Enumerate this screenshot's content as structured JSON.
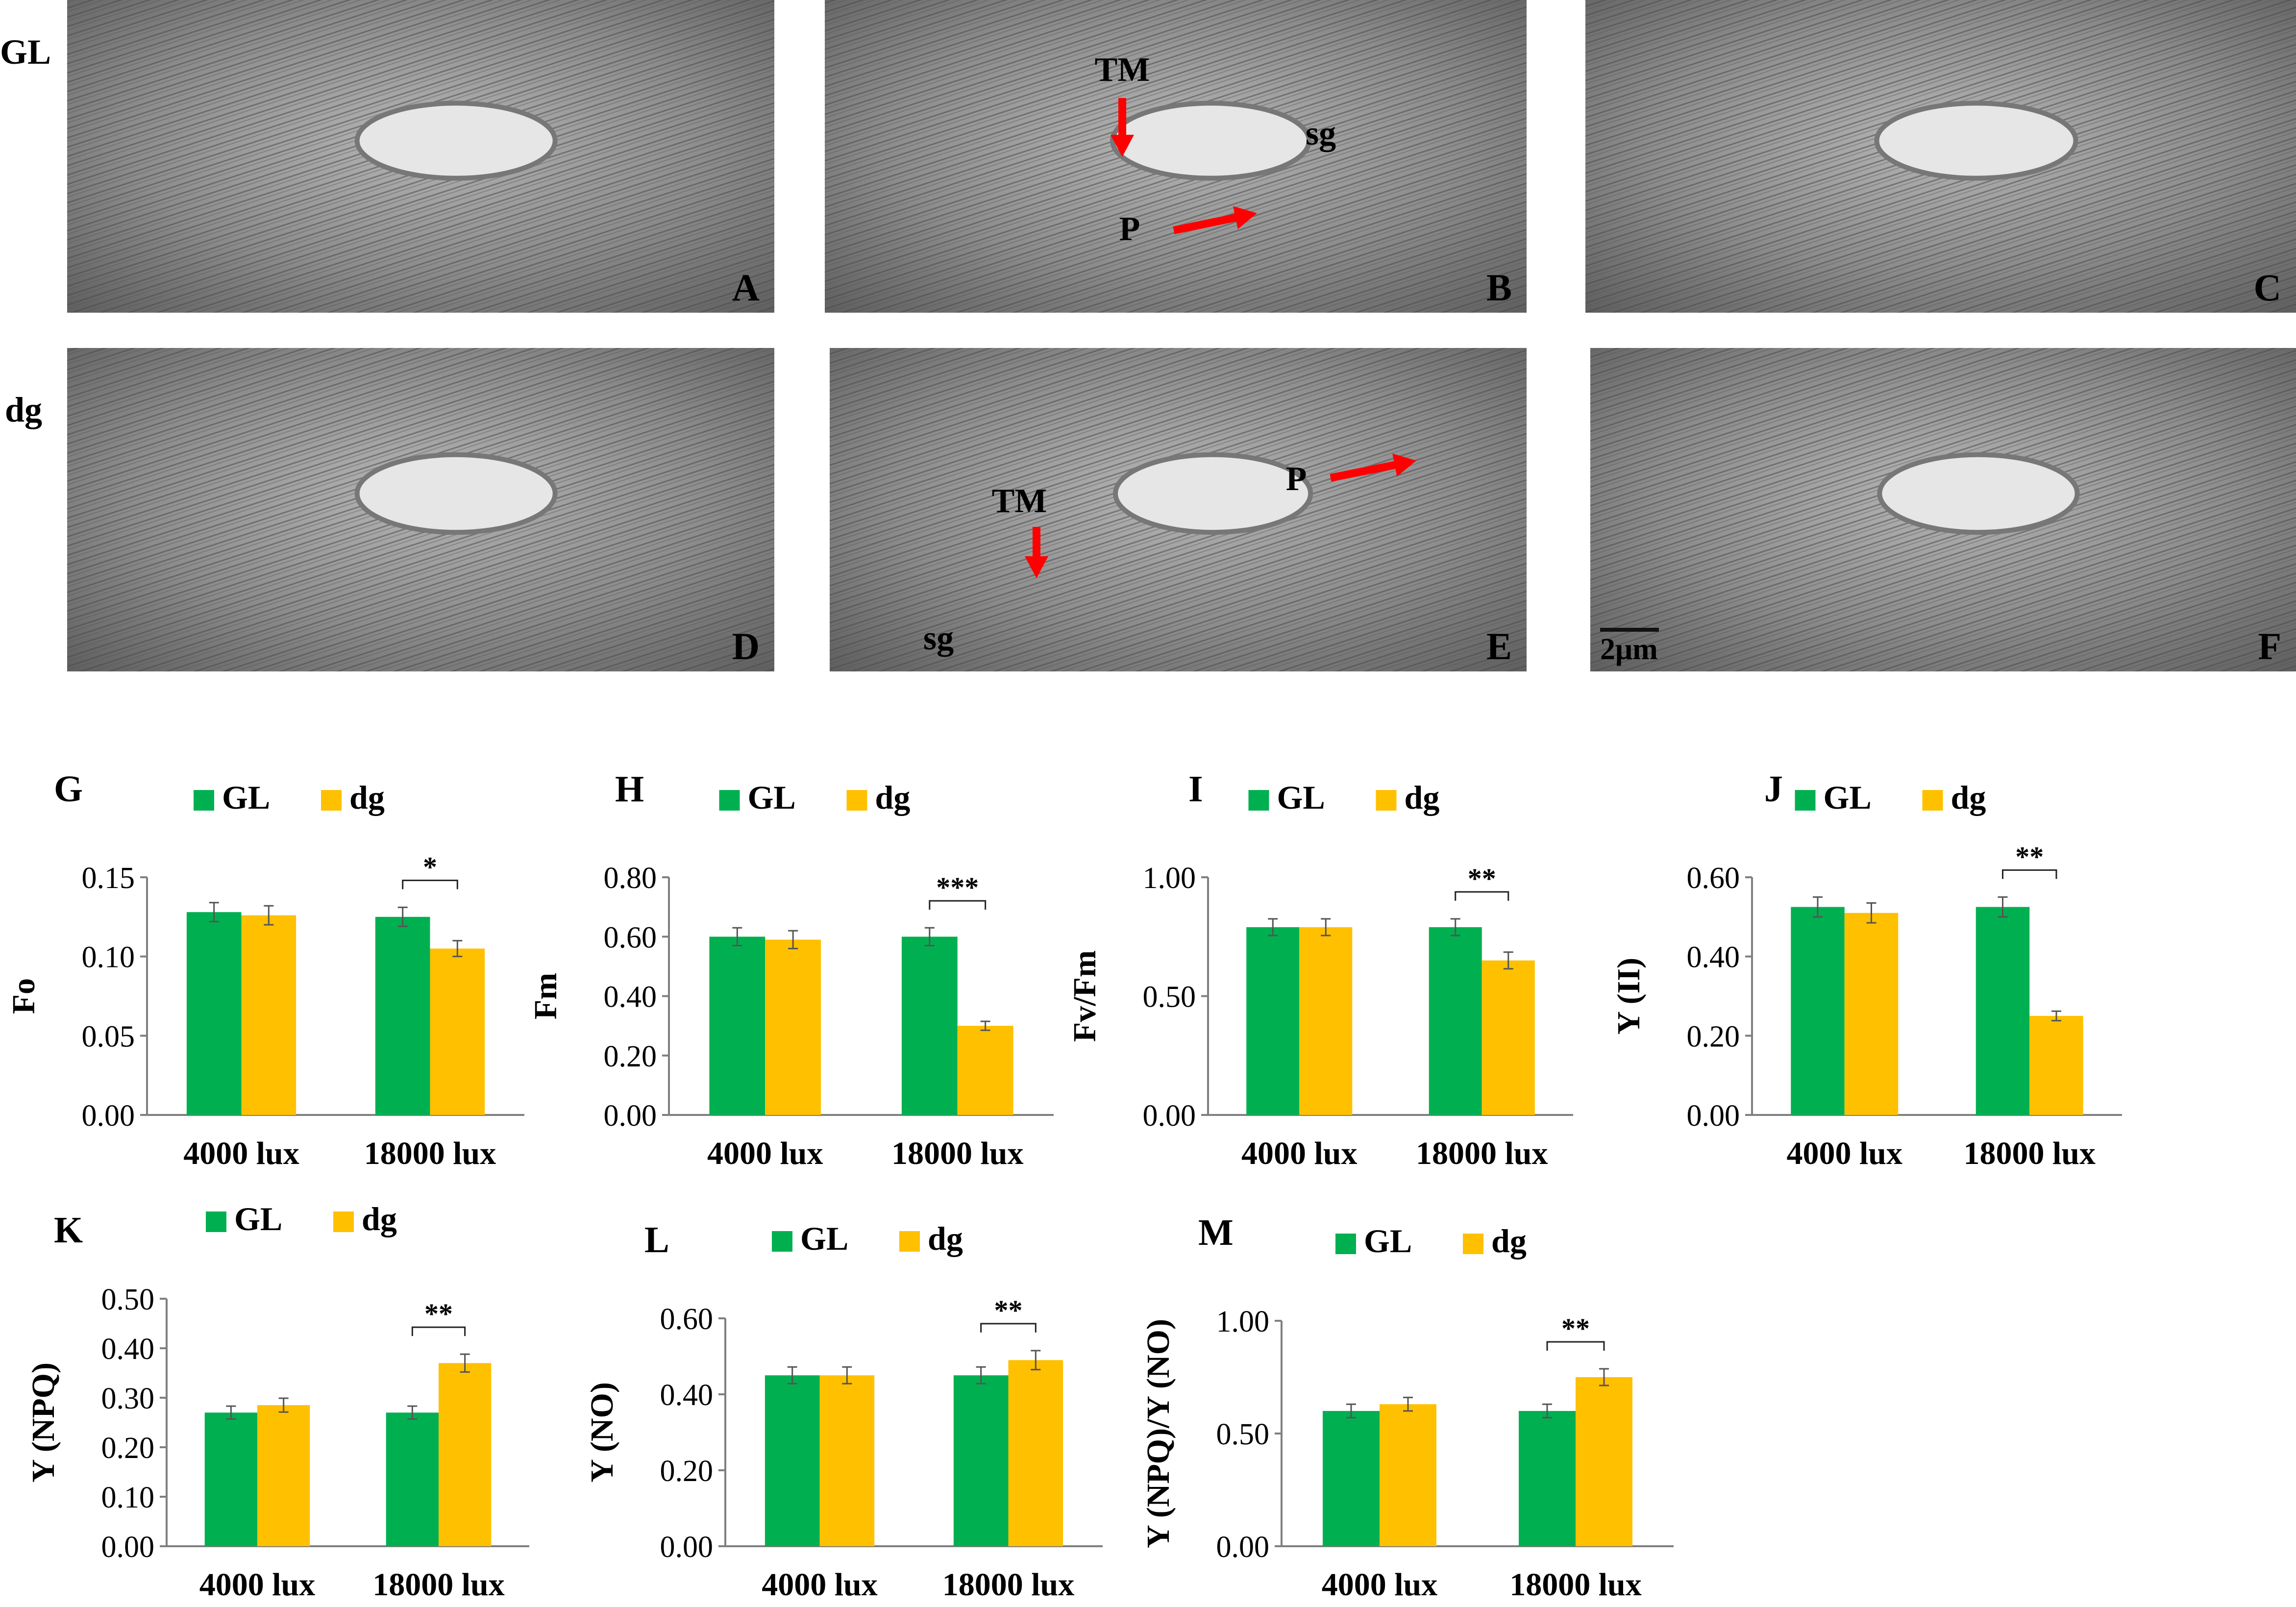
{
  "row_labels": [
    "GL",
    "dg"
  ],
  "micrographs": [
    {
      "letter": "A",
      "labels": []
    },
    {
      "letter": "B",
      "labels": [
        "TM",
        "sg",
        "P"
      ]
    },
    {
      "letter": "C",
      "labels": []
    },
    {
      "letter": "D",
      "labels": []
    },
    {
      "letter": "E",
      "labels": [
        "TM",
        "P",
        "sg"
      ]
    },
    {
      "letter": "F",
      "labels": [],
      "scale_bar": "2μm"
    }
  ],
  "colors": {
    "GL": "#00B050",
    "dg": "#FFC000",
    "arrow": "#ff0000"
  },
  "chart_data": [
    {
      "type": "bar",
      "panel": "G",
      "ylabel": "Fo",
      "categories": [
        "4000 lux",
        "18000 lux"
      ],
      "series": [
        {
          "name": "GL",
          "values": [
            0.128,
            0.125
          ],
          "errors": [
            0.006,
            0.006
          ]
        },
        {
          "name": "dg",
          "values": [
            0.126,
            0.105
          ],
          "errors": [
            0.006,
            0.005
          ]
        }
      ],
      "ylim": [
        0,
        0.15
      ],
      "yticks": [
        "0.00",
        "0.05",
        "0.10",
        "0.15"
      ],
      "significance": "*",
      "legend": "top-center",
      "grid": false
    },
    {
      "type": "bar",
      "panel": "H",
      "ylabel": "Fm",
      "categories": [
        "4000 lux",
        "18000 lux"
      ],
      "series": [
        {
          "name": "GL",
          "values": [
            0.6,
            0.6
          ],
          "errors": [
            0.03,
            0.03
          ]
        },
        {
          "name": "dg",
          "values": [
            0.59,
            0.3
          ],
          "errors": [
            0.03,
            0.015
          ]
        }
      ],
      "ylim": [
        0,
        0.8
      ],
      "yticks": [
        "0.00",
        "0.20",
        "0.40",
        "0.60",
        "0.80"
      ],
      "significance": "***",
      "legend": "top-center",
      "grid": false
    },
    {
      "type": "bar",
      "panel": "I",
      "ylabel": "Fv/Fm",
      "categories": [
        "4000 lux",
        "18000 lux"
      ],
      "series": [
        {
          "name": "GL",
          "values": [
            0.79,
            0.79
          ],
          "errors": [
            0.035,
            0.035
          ]
        },
        {
          "name": "dg",
          "values": [
            0.79,
            0.65
          ],
          "errors": [
            0.035,
            0.035
          ]
        }
      ],
      "ylim": [
        0,
        1.0
      ],
      "yticks": [
        "0.00",
        "0.50",
        "1.00"
      ],
      "significance": "**",
      "legend": "top-center",
      "grid": false
    },
    {
      "type": "bar",
      "panel": "J",
      "ylabel": "Y (II)",
      "categories": [
        "4000 lux",
        "18000 lux"
      ],
      "series": [
        {
          "name": "GL",
          "values": [
            0.525,
            0.525
          ],
          "errors": [
            0.025,
            0.025
          ]
        },
        {
          "name": "dg",
          "values": [
            0.51,
            0.25
          ],
          "errors": [
            0.025,
            0.012
          ]
        }
      ],
      "ylim": [
        0,
        0.6
      ],
      "yticks": [
        "0.00",
        "0.20",
        "0.40",
        "0.60"
      ],
      "significance": "**",
      "legend": "top-center",
      "grid": false
    },
    {
      "type": "bar",
      "panel": "K",
      "ylabel": "Y (NPQ)",
      "categories": [
        "4000 lux",
        "18000 lux"
      ],
      "series": [
        {
          "name": "GL",
          "values": [
            0.27,
            0.27
          ],
          "errors": [
            0.013,
            0.013
          ]
        },
        {
          "name": "dg",
          "values": [
            0.285,
            0.37
          ],
          "errors": [
            0.014,
            0.018
          ]
        }
      ],
      "ylim": [
        0,
        0.5
      ],
      "yticks": [
        "0.00",
        "0.10",
        "0.20",
        "0.30",
        "0.40",
        "0.50"
      ],
      "significance": "**",
      "legend": "top-center",
      "grid": false
    },
    {
      "type": "bar",
      "panel": "L",
      "ylabel": "Y (NO)",
      "categories": [
        "4000 lux",
        "18000 lux"
      ],
      "series": [
        {
          "name": "GL",
          "values": [
            0.45,
            0.45
          ],
          "errors": [
            0.022,
            0.022
          ]
        },
        {
          "name": "dg",
          "values": [
            0.45,
            0.49
          ],
          "errors": [
            0.022,
            0.025
          ]
        }
      ],
      "ylim": [
        0,
        0.6
      ],
      "yticks": [
        "0.00",
        "0.20",
        "0.40",
        "0.60"
      ],
      "significance": "**",
      "legend": "top-center",
      "grid": false
    },
    {
      "type": "bar",
      "panel": "M",
      "ylabel": "Y (NPQ)/Y (NO)",
      "categories": [
        "4000 lux",
        "18000 lux"
      ],
      "series": [
        {
          "name": "GL",
          "values": [
            0.6,
            0.6
          ],
          "errors": [
            0.03,
            0.03
          ]
        },
        {
          "name": "dg",
          "values": [
            0.63,
            0.75
          ],
          "errors": [
            0.03,
            0.037
          ]
        }
      ],
      "ylim": [
        0,
        1.0
      ],
      "yticks": [
        "0.00",
        "0.50",
        "1.00"
      ],
      "significance": "**",
      "legend": "top-center",
      "grid": false
    }
  ]
}
